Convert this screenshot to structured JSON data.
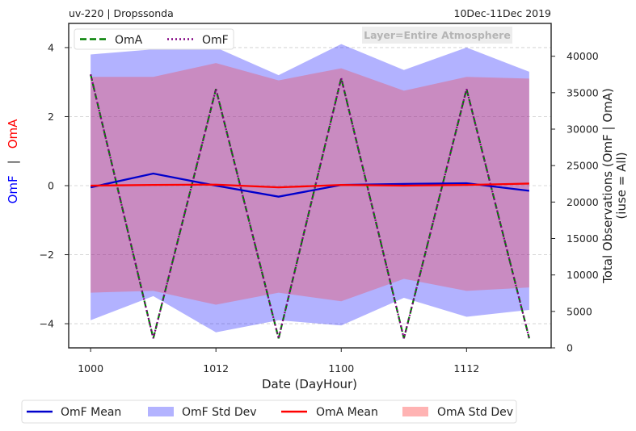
{
  "chart_data": {
    "type": "line",
    "title_left": "uv-220  |  Dropssonda",
    "title_right": "10Dec-11Dec 2019",
    "annotation": "Layer=Entire Atmosphere",
    "xlabel": "Date (DayHour)",
    "ylabel_left_parts": [
      {
        "text": "OmF",
        "color": "#0000ff"
      },
      {
        "text": "|",
        "color": "#222222"
      },
      {
        "text": "OmA",
        "color": "#ff0000"
      }
    ],
    "ylabel_right": "Total Observations (OmF | OmA)",
    "ylabel_right_sub": "(iuse = All)",
    "x_ticks": [
      {
        "x": 0,
        "label": "1000"
      },
      {
        "x": 2,
        "label": "1012"
      },
      {
        "x": 4,
        "label": "1100"
      },
      {
        "x": 6,
        "label": "1112"
      }
    ],
    "xlim": [
      -0.35,
      7.35
    ],
    "ylim_left": [
      -4.7,
      4.7
    ],
    "yticks_left": [
      -4,
      -2,
      0,
      2,
      4
    ],
    "ylim_right": [
      0,
      44500
    ],
    "yticks_right": [
      0,
      5000,
      10000,
      15000,
      20000,
      25000,
      30000,
      35000,
      40000
    ],
    "grid": "dashed-horizontal",
    "x": [
      0,
      1,
      2,
      3,
      4,
      5,
      6,
      7
    ],
    "series": [
      {
        "name": "OmF Mean",
        "color": "#0000cc",
        "values": [
          -0.05,
          0.35,
          0.0,
          -0.32,
          0.02,
          0.05,
          0.07,
          -0.15
        ]
      },
      {
        "name": "OmA Mean",
        "color": "#ff0000",
        "values": [
          0.0,
          0.02,
          0.03,
          -0.05,
          0.02,
          0.0,
          0.02,
          0.06
        ]
      }
    ],
    "bands": [
      {
        "name": "OmF Std Dev",
        "color": "#0000ff",
        "opacity": 0.3,
        "upper": [
          3.8,
          3.95,
          4.0,
          3.2,
          4.1,
          3.35,
          4.0,
          3.3
        ],
        "lower": [
          -3.9,
          -3.2,
          -4.25,
          -3.9,
          -4.05,
          -3.25,
          -3.8,
          -3.6
        ]
      },
      {
        "name": "OmA Std Dev",
        "color": "#ff3333",
        "opacity": 0.3,
        "upper": [
          3.15,
          3.15,
          3.55,
          3.05,
          3.4,
          2.75,
          3.15,
          3.1
        ],
        "lower": [
          -3.1,
          -3.05,
          -3.45,
          -3.1,
          -3.35,
          -2.7,
          -3.05,
          -2.95
        ]
      }
    ],
    "counts": [
      {
        "name": "OmA",
        "color": "#007f00",
        "style": "dashed",
        "values": [
          37500,
          1300,
          35500,
          1300,
          37000,
          1300,
          35500,
          1300
        ]
      },
      {
        "name": "OmF",
        "color": "#800080",
        "style": "dotted",
        "values": [
          37500,
          1300,
          35500,
          1300,
          37000,
          1300,
          35500,
          1300
        ]
      }
    ],
    "top_legend": [
      {
        "label": "OmA",
        "color": "#007f00",
        "style": "dashed"
      },
      {
        "label": "OmF",
        "color": "#800080",
        "style": "dotted"
      }
    ],
    "bottom_legend": [
      {
        "label": "OmF Mean",
        "color": "#0000cc",
        "kind": "line"
      },
      {
        "label": "OmF Std Dev",
        "color": "#b3b3ff",
        "kind": "patch"
      },
      {
        "label": "OmA Mean",
        "color": "#ff0000",
        "kind": "line"
      },
      {
        "label": "OmA Std Dev",
        "color": "#ffb3b3",
        "kind": "patch"
      }
    ]
  }
}
